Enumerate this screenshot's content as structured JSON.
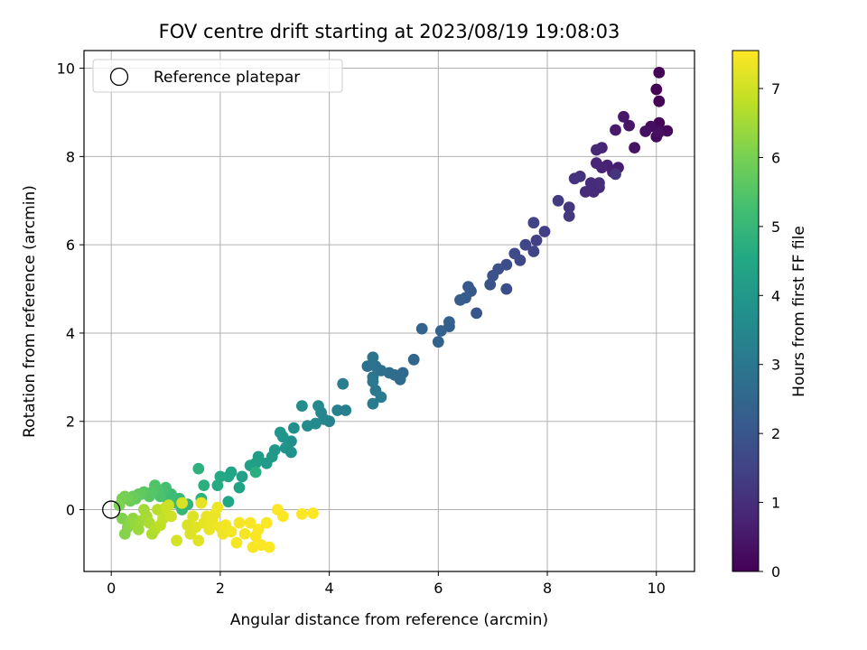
{
  "chart_data": {
    "type": "scatter",
    "title": "FOV centre drift starting at 2023/08/19 19:08:03",
    "xlabel": "Angular distance from reference (arcmin)",
    "ylabel": "Rotation from reference (arcmin)",
    "xlim": [
      -0.5,
      10.7
    ],
    "ylim": [
      -1.4,
      10.4
    ],
    "xticks": [
      0,
      2,
      4,
      6,
      8,
      10
    ],
    "yticks": [
      0,
      2,
      4,
      6,
      8,
      10
    ],
    "grid": true,
    "legend": {
      "position": "top-left",
      "entries": [
        {
          "label": "Reference platepar",
          "marker": "open-circle",
          "color": "#000000"
        }
      ]
    },
    "reference_point": {
      "x": 0,
      "y": 0
    },
    "colorbar": {
      "label": "Hours from first FF file",
      "colormap": "viridis",
      "range": [
        0,
        7.55
      ],
      "ticks": [
        0,
        1,
        2,
        3,
        4,
        5,
        6,
        7
      ]
    },
    "series": [
      {
        "points": [
          [
            10.05,
            9.9,
            0.0
          ],
          [
            10.0,
            9.52,
            0.02
          ],
          [
            10.05,
            9.25,
            0.05
          ],
          [
            10.05,
            8.76,
            0.1
          ],
          [
            10.2,
            8.58,
            0.15
          ],
          [
            10.0,
            8.45,
            0.2
          ],
          [
            9.9,
            8.68,
            0.25
          ],
          [
            10.05,
            8.55,
            0.3
          ],
          [
            9.8,
            8.57,
            0.35
          ],
          [
            9.6,
            8.2,
            0.4
          ],
          [
            9.5,
            8.7,
            0.45
          ],
          [
            9.4,
            8.9,
            0.5
          ],
          [
            9.25,
            8.6,
            0.55
          ],
          [
            9.3,
            7.75,
            0.6
          ],
          [
            9.2,
            7.65,
            0.65
          ],
          [
            9.1,
            7.8,
            0.7
          ],
          [
            9.0,
            7.75,
            0.75
          ],
          [
            8.9,
            7.85,
            0.78
          ],
          [
            9.0,
            8.2,
            0.8
          ],
          [
            8.9,
            8.15,
            0.85
          ],
          [
            8.95,
            7.3,
            0.9
          ],
          [
            8.85,
            7.2,
            0.92
          ],
          [
            8.8,
            7.4,
            0.95
          ],
          [
            8.95,
            7.4,
            0.98
          ],
          [
            8.7,
            7.2,
            1.0
          ],
          [
            8.6,
            7.55,
            1.05
          ],
          [
            8.5,
            7.5,
            1.1
          ],
          [
            9.25,
            7.6,
            1.15
          ],
          [
            8.4,
            6.85,
            1.2
          ],
          [
            8.4,
            6.65,
            1.25
          ],
          [
            8.2,
            7.0,
            1.3
          ],
          [
            7.95,
            6.3,
            1.4
          ],
          [
            7.8,
            6.1,
            1.45
          ],
          [
            7.75,
            6.5,
            1.5
          ],
          [
            7.75,
            5.85,
            1.55
          ],
          [
            7.6,
            6.0,
            1.6
          ],
          [
            7.5,
            5.65,
            1.65
          ],
          [
            7.4,
            5.8,
            1.7
          ],
          [
            7.25,
            5.55,
            1.75
          ],
          [
            7.25,
            5.0,
            1.8
          ],
          [
            7.1,
            5.45,
            1.85
          ],
          [
            7.0,
            5.3,
            1.9
          ],
          [
            6.95,
            5.1,
            1.95
          ],
          [
            6.7,
            4.45,
            2.0
          ],
          [
            6.6,
            4.95,
            2.05
          ],
          [
            6.55,
            5.05,
            2.1
          ],
          [
            6.5,
            4.8,
            2.15
          ],
          [
            6.4,
            4.75,
            2.2
          ],
          [
            6.2,
            4.15,
            2.25
          ],
          [
            6.2,
            4.25,
            2.3
          ],
          [
            6.05,
            4.05,
            2.35
          ],
          [
            6.0,
            3.8,
            2.4
          ],
          [
            5.7,
            4.1,
            2.45
          ],
          [
            5.55,
            3.4,
            2.5
          ],
          [
            5.35,
            3.1,
            2.55
          ],
          [
            5.3,
            2.95,
            2.6
          ],
          [
            5.2,
            3.05,
            2.65
          ],
          [
            5.1,
            3.1,
            2.7
          ],
          [
            4.95,
            3.15,
            2.75
          ],
          [
            4.85,
            3.25,
            2.8
          ],
          [
            4.7,
            3.25,
            2.85
          ],
          [
            4.8,
            3.45,
            2.9
          ],
          [
            4.8,
            3.0,
            2.95
          ],
          [
            4.85,
            2.7,
            3.0
          ],
          [
            4.8,
            2.9,
            3.05
          ],
          [
            4.95,
            2.55,
            3.1
          ],
          [
            4.8,
            2.4,
            3.15
          ],
          [
            4.25,
            2.85,
            3.2
          ],
          [
            4.3,
            2.25,
            3.25
          ],
          [
            4.15,
            2.25,
            3.3
          ],
          [
            4.0,
            2.0,
            3.35
          ],
          [
            3.9,
            2.05,
            3.4
          ],
          [
            3.85,
            2.2,
            3.45
          ],
          [
            3.8,
            2.35,
            3.5
          ],
          [
            3.75,
            1.95,
            3.55
          ],
          [
            3.6,
            1.9,
            3.6
          ],
          [
            3.5,
            2.35,
            3.65
          ],
          [
            3.35,
            1.85,
            3.7
          ],
          [
            3.3,
            1.55,
            3.75
          ],
          [
            3.3,
            1.3,
            3.8
          ],
          [
            3.2,
            1.4,
            3.85
          ],
          [
            3.15,
            1.65,
            3.9
          ],
          [
            3.1,
            1.75,
            3.95
          ],
          [
            3.0,
            1.35,
            4.0
          ],
          [
            2.95,
            1.2,
            4.05
          ],
          [
            2.85,
            1.05,
            4.1
          ],
          [
            2.7,
            1.2,
            4.15
          ],
          [
            2.65,
            1.05,
            4.2
          ],
          [
            2.55,
            1.0,
            4.25
          ],
          [
            2.4,
            0.75,
            4.3
          ],
          [
            2.35,
            0.5,
            4.35
          ],
          [
            2.2,
            0.85,
            4.4
          ],
          [
            2.15,
            0.75,
            4.45
          ],
          [
            2.15,
            0.18,
            4.5
          ],
          [
            2.0,
            0.75,
            4.55
          ],
          [
            1.95,
            0.55,
            4.6
          ],
          [
            2.65,
            0.85,
            4.7
          ],
          [
            1.7,
            0.55,
            4.75
          ],
          [
            1.6,
            0.93,
            4.8
          ],
          [
            1.65,
            0.25,
            4.85
          ],
          [
            1.4,
            0.12,
            4.9
          ],
          [
            1.35,
            0.1,
            4.95
          ],
          [
            1.3,
            0.0,
            5.0
          ],
          [
            1.25,
            0.25,
            5.05
          ],
          [
            1.2,
            0.15,
            5.1
          ],
          [
            1.1,
            0.35,
            5.15
          ],
          [
            1.05,
            0.2,
            5.2
          ],
          [
            1.0,
            0.5,
            5.25
          ],
          [
            0.95,
            0.45,
            5.3
          ],
          [
            0.9,
            0.3,
            5.35
          ],
          [
            0.85,
            0.45,
            5.4
          ],
          [
            0.8,
            0.55,
            5.45
          ],
          [
            0.75,
            0.4,
            5.5
          ],
          [
            0.7,
            0.3,
            5.55
          ],
          [
            0.6,
            0.4,
            5.6
          ],
          [
            0.55,
            0.35,
            5.65
          ],
          [
            0.5,
            0.35,
            5.7
          ],
          [
            0.45,
            0.25,
            5.75
          ],
          [
            0.4,
            0.3,
            5.8
          ],
          [
            0.35,
            0.2,
            5.85
          ],
          [
            0.3,
            0.25,
            5.9
          ],
          [
            0.25,
            0.3,
            5.95
          ],
          [
            0.2,
            0.25,
            6.0
          ],
          [
            0.15,
            0.1,
            6.05
          ],
          [
            0.2,
            -0.2,
            6.1
          ],
          [
            0.25,
            -0.55,
            6.15
          ],
          [
            0.3,
            -0.4,
            6.2
          ],
          [
            0.35,
            -0.3,
            6.25
          ],
          [
            0.4,
            -0.2,
            6.3
          ],
          [
            0.45,
            -0.35,
            6.35
          ],
          [
            0.5,
            -0.45,
            6.4
          ],
          [
            0.55,
            -0.25,
            6.45
          ],
          [
            0.6,
            0.0,
            6.5
          ],
          [
            0.65,
            -0.15,
            6.55
          ],
          [
            0.7,
            -0.3,
            6.6
          ],
          [
            0.75,
            -0.55,
            6.65
          ],
          [
            0.8,
            -0.45,
            6.7
          ],
          [
            0.85,
            0.0,
            6.75
          ],
          [
            0.9,
            -0.35,
            6.8
          ],
          [
            0.95,
            -0.2,
            6.85
          ],
          [
            1.0,
            0.05,
            6.9
          ],
          [
            1.05,
            0.1,
            6.95
          ],
          [
            1.1,
            -0.15,
            7.0
          ],
          [
            1.2,
            -0.7,
            7.05
          ],
          [
            1.3,
            0.15,
            7.1
          ],
          [
            1.4,
            -0.35,
            7.12
          ],
          [
            1.45,
            -0.55,
            7.15
          ],
          [
            1.5,
            -0.15,
            7.18
          ],
          [
            1.55,
            -0.4,
            7.2
          ],
          [
            1.6,
            -0.7,
            7.22
          ],
          [
            1.65,
            0.15,
            7.25
          ],
          [
            1.7,
            -0.3,
            7.27
          ],
          [
            1.75,
            -0.15,
            7.3
          ],
          [
            1.8,
            -0.45,
            7.32
          ],
          [
            1.85,
            -0.25,
            7.34
          ],
          [
            1.9,
            -0.1,
            7.35
          ],
          [
            1.95,
            0.05,
            7.37
          ],
          [
            2.0,
            -0.4,
            7.38
          ],
          [
            2.05,
            -0.55,
            7.4
          ],
          [
            2.1,
            -0.35,
            7.42
          ],
          [
            2.2,
            -0.5,
            7.43
          ],
          [
            2.3,
            -0.75,
            7.44
          ],
          [
            2.35,
            -0.3,
            7.45
          ],
          [
            2.45,
            -0.55,
            7.46
          ],
          [
            2.55,
            -0.3,
            7.47
          ],
          [
            2.6,
            -0.85,
            7.48
          ],
          [
            2.65,
            -0.6,
            7.49
          ],
          [
            2.7,
            -0.45,
            7.5
          ],
          [
            2.75,
            -0.8,
            7.5
          ],
          [
            2.85,
            -0.3,
            7.51
          ],
          [
            2.9,
            -0.85,
            7.52
          ],
          [
            3.05,
            0.0,
            7.53
          ],
          [
            3.15,
            -0.15,
            7.54
          ],
          [
            3.5,
            -0.1,
            7.54
          ],
          [
            3.7,
            -0.08,
            7.55
          ]
        ]
      }
    ]
  }
}
